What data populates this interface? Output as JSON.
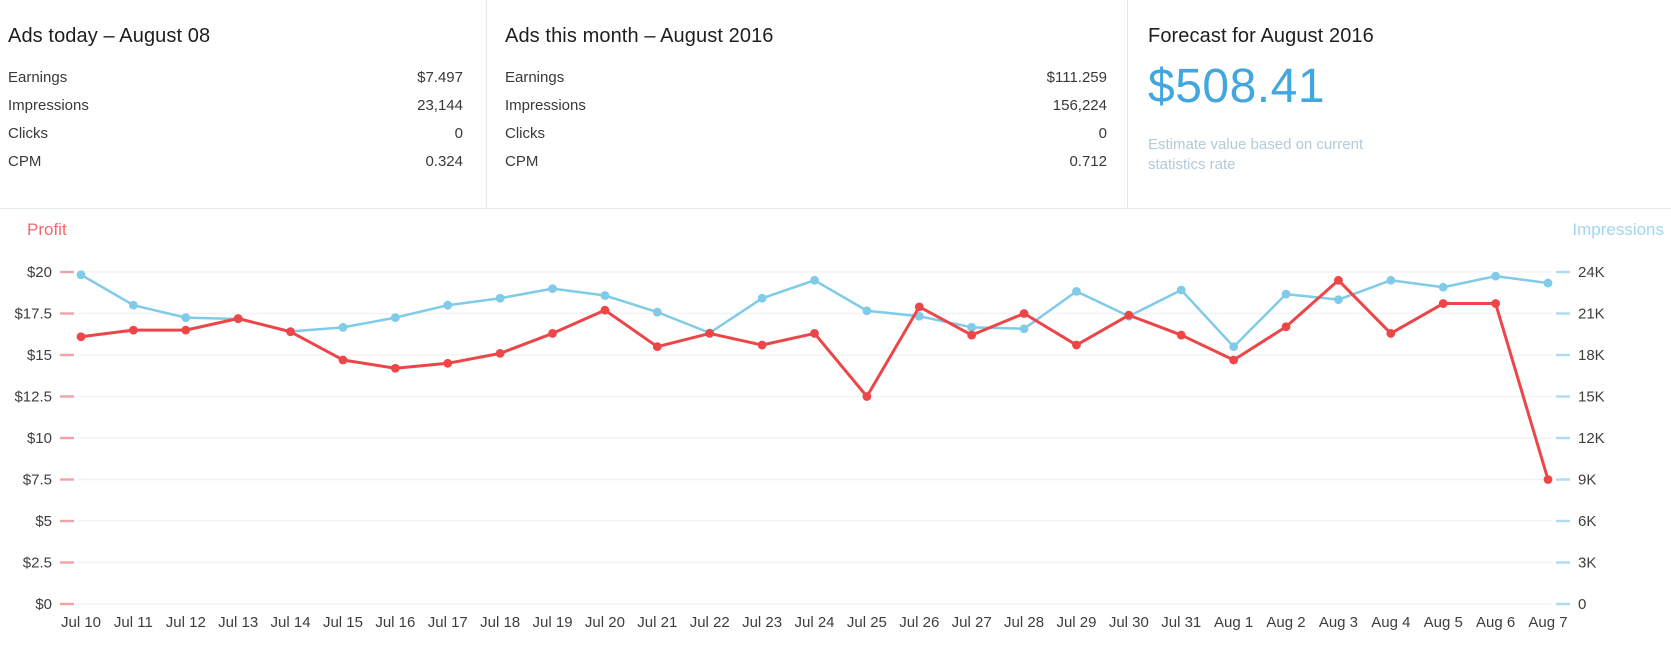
{
  "panels": {
    "today": {
      "title": "Ads today – August 08",
      "rows": [
        {
          "label": "Earnings",
          "value": "$7.497"
        },
        {
          "label": "Impressions",
          "value": "23,144"
        },
        {
          "label": "Clicks",
          "value": "0"
        },
        {
          "label": "CPM",
          "value": "0.324"
        }
      ]
    },
    "month": {
      "title": "Ads this month – August 2016",
      "rows": [
        {
          "label": "Earnings",
          "value": "$111.259"
        },
        {
          "label": "Impressions",
          "value": "156,224"
        },
        {
          "label": "Clicks",
          "value": "0"
        },
        {
          "label": "CPM",
          "value": "0.712"
        }
      ]
    },
    "forecast": {
      "title": "Forecast for August 2016",
      "value": "$508.41",
      "note": "Estimate value based on current statistics rate"
    }
  },
  "colors": {
    "accent_blue": "#41a7de",
    "note_gray_blue": "#b4c9d9",
    "divider": "#dfe9ee",
    "profit_red": "#ec4649",
    "impressions_blue": "#7fcbe8",
    "grid": "#f3f3f3",
    "axis_text": "#3e3e3e"
  },
  "chart_data": {
    "type": "line",
    "title": "",
    "x": [
      "Jul 10",
      "Jul 11",
      "Jul 12",
      "Jul 13",
      "Jul 14",
      "Jul 15",
      "Jul 16",
      "Jul 17",
      "Jul 18",
      "Jul 19",
      "Jul 20",
      "Jul 21",
      "Jul 22",
      "Jul 23",
      "Jul 24",
      "Jul 25",
      "Jul 26",
      "Jul 27",
      "Jul 28",
      "Jul 29",
      "Jul 30",
      "Jul 31",
      "Aug 1",
      "Aug 2",
      "Aug 3",
      "Aug 4",
      "Aug 5",
      "Aug 6",
      "Aug 7"
    ],
    "series": [
      {
        "name": "Impressions",
        "axis": "right",
        "color": "#7fcbe8",
        "values": [
          23800,
          21600,
          20700,
          20600,
          19700,
          20000,
          20700,
          21600,
          22100,
          22800,
          22300,
          21100,
          19600,
          22100,
          23400,
          21200,
          20800,
          20000,
          19900,
          22600,
          20800,
          22700,
          18600,
          22400,
          22000,
          23400,
          22900,
          23700,
          23200
        ]
      },
      {
        "name": "Profit",
        "axis": "left",
        "color": "#ec4649",
        "values": [
          16.1,
          16.5,
          16.5,
          17.2,
          16.4,
          14.7,
          14.2,
          14.5,
          15.1,
          16.3,
          17.7,
          15.5,
          16.3,
          15.6,
          16.3,
          12.5,
          17.9,
          16.2,
          17.5,
          15.6,
          17.4,
          16.2,
          14.7,
          16.7,
          19.5,
          16.3,
          18.1,
          18.1,
          7.5
        ]
      }
    ],
    "left_axis": {
      "min": 0,
      "max": 20,
      "ticks": [
        "$20",
        "$17.5",
        "$15",
        "$12.5",
        "$10",
        "$7.5",
        "$5",
        "$2.5",
        "$0"
      ],
      "tick_color": "#f2a3a5",
      "text_color": "#3e3e3e"
    },
    "right_axis": {
      "min": 0,
      "max": 24000,
      "ticks": [
        "24K",
        "21K",
        "18K",
        "15K",
        "12K",
        "9K",
        "6K",
        "3K",
        "0"
      ],
      "tick_color": "#acdcf0",
      "text_color": "#3e3e3e"
    },
    "grid": true,
    "legend": {
      "left": {
        "label": "Profit",
        "color": "#f2696c"
      },
      "right": {
        "label": "Impressions",
        "color": "#a0d5ef"
      }
    }
  }
}
